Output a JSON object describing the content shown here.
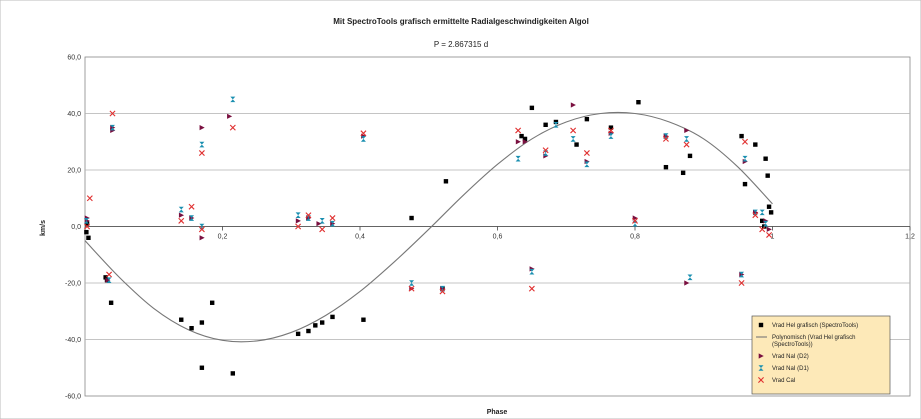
{
  "chart_data": {
    "type": "scatter",
    "title": "Mit SpectroTools grafisch ermittelte Radialgeschwindigkeiten Algol",
    "subtitle": "P = 2.867315 d",
    "xlabel": "Phase",
    "ylabel": "km/s",
    "xlim": [
      0,
      1.2
    ],
    "ylim": [
      -60,
      60
    ],
    "x_ticks": [
      "0",
      "0,2",
      "0,4",
      "0,6",
      "0,8",
      "1",
      "1,2"
    ],
    "y_ticks": [
      "60,0",
      "40,0",
      "20,0",
      "0,0",
      "-20,0",
      "-40,0",
      "-60,0"
    ],
    "grid": "horizontal",
    "legend_position": "bottom-right",
    "series": [
      {
        "name": "Vrad Hel grafisch (SpectroTools)",
        "marker": "square",
        "color": "#000000",
        "points": [
          [
            0.002,
            -2
          ],
          [
            0.005,
            -4
          ],
          [
            0.003,
            1
          ],
          [
            0.03,
            -18
          ],
          [
            0.032,
            -19
          ],
          [
            0.038,
            -27
          ],
          [
            0.14,
            -33
          ],
          [
            0.155,
            -36
          ],
          [
            0.17,
            -50
          ],
          [
            0.17,
            -34
          ],
          [
            0.185,
            -27
          ],
          [
            0.215,
            -52
          ],
          [
            0.31,
            -38
          ],
          [
            0.325,
            -37
          ],
          [
            0.335,
            -35
          ],
          [
            0.345,
            -34
          ],
          [
            0.36,
            -32
          ],
          [
            0.405,
            -33
          ],
          [
            0.475,
            3
          ],
          [
            0.52,
            -22
          ],
          [
            0.525,
            16
          ],
          [
            0.635,
            32
          ],
          [
            0.64,
            31
          ],
          [
            0.65,
            42
          ],
          [
            0.67,
            36
          ],
          [
            0.685,
            37
          ],
          [
            0.715,
            29
          ],
          [
            0.73,
            38
          ],
          [
            0.765,
            35
          ],
          [
            0.805,
            44
          ],
          [
            0.845,
            21
          ],
          [
            0.87,
            19
          ],
          [
            0.88,
            25
          ],
          [
            0.955,
            32
          ],
          [
            0.96,
            15
          ],
          [
            0.975,
            29
          ],
          [
            0.99,
            24
          ],
          [
            0.993,
            18
          ],
          [
            0.995,
            7
          ],
          [
            0.998,
            5
          ],
          [
            0.985,
            2
          ],
          [
            0.988,
            0
          ]
        ]
      },
      {
        "name": "Polynomisch (Vrad Hel grafisch (SpectroTools))",
        "line": true,
        "color": "#777777",
        "points": [
          [
            0.0,
            -5
          ],
          [
            0.05,
            -18
          ],
          [
            0.1,
            -29
          ],
          [
            0.15,
            -36.5
          ],
          [
            0.2,
            -40.3
          ],
          [
            0.25,
            -40.5
          ],
          [
            0.3,
            -37.5
          ],
          [
            0.35,
            -31.5
          ],
          [
            0.4,
            -23
          ],
          [
            0.45,
            -12.5
          ],
          [
            0.5,
            -1
          ],
          [
            0.55,
            11
          ],
          [
            0.6,
            22
          ],
          [
            0.65,
            31
          ],
          [
            0.7,
            37
          ],
          [
            0.75,
            40
          ],
          [
            0.8,
            40
          ],
          [
            0.85,
            37
          ],
          [
            0.9,
            31
          ],
          [
            0.95,
            21
          ],
          [
            1.0,
            8
          ]
        ]
      },
      {
        "name": "Vrad NaI (D2)",
        "marker": "triangle-right",
        "color": "#7a1040",
        "points": [
          [
            0.003,
            3
          ],
          [
            0.003,
            2
          ],
          [
            0.033,
            -19
          ],
          [
            0.04,
            35
          ],
          [
            0.04,
            34
          ],
          [
            0.14,
            4
          ],
          [
            0.155,
            3
          ],
          [
            0.17,
            35
          ],
          [
            0.17,
            -4
          ],
          [
            0.21,
            39
          ],
          [
            0.31,
            2
          ],
          [
            0.325,
            3
          ],
          [
            0.34,
            1
          ],
          [
            0.36,
            1
          ],
          [
            0.405,
            32
          ],
          [
            0.475,
            -22
          ],
          [
            0.52,
            -22
          ],
          [
            0.63,
            30
          ],
          [
            0.64,
            30
          ],
          [
            0.65,
            -15
          ],
          [
            0.67,
            25
          ],
          [
            0.71,
            43
          ],
          [
            0.73,
            23
          ],
          [
            0.765,
            33
          ],
          [
            0.8,
            3
          ],
          [
            0.845,
            32
          ],
          [
            0.875,
            34
          ],
          [
            0.875,
            -20
          ],
          [
            0.955,
            -17
          ],
          [
            0.96,
            23
          ],
          [
            0.975,
            5
          ],
          [
            0.99,
            2
          ],
          [
            0.995,
            -1
          ]
        ]
      },
      {
        "name": "Vrad NaI (D1)",
        "marker": "hourglass",
        "color": "#1a8fb0",
        "points": [
          [
            0.002,
            2
          ],
          [
            0.035,
            -19
          ],
          [
            0.04,
            35
          ],
          [
            0.14,
            6
          ],
          [
            0.155,
            3
          ],
          [
            0.17,
            29
          ],
          [
            0.17,
            0
          ],
          [
            0.215,
            45
          ],
          [
            0.31,
            4
          ],
          [
            0.325,
            3
          ],
          [
            0.345,
            2
          ],
          [
            0.36,
            1
          ],
          [
            0.405,
            31
          ],
          [
            0.475,
            -20
          ],
          [
            0.52,
            -22
          ],
          [
            0.63,
            24
          ],
          [
            0.65,
            -16
          ],
          [
            0.67,
            26
          ],
          [
            0.685,
            36
          ],
          [
            0.71,
            31
          ],
          [
            0.73,
            22
          ],
          [
            0.765,
            32
          ],
          [
            0.8,
            1
          ],
          [
            0.845,
            32
          ],
          [
            0.875,
            31
          ],
          [
            0.88,
            -18
          ],
          [
            0.955,
            -17
          ],
          [
            0.96,
            24
          ],
          [
            0.975,
            5
          ],
          [
            0.985,
            5
          ],
          [
            0.99,
            1
          ]
        ]
      },
      {
        "name": "Vrad CaI",
        "marker": "x",
        "color": "#e03030",
        "points": [
          [
            0.007,
            10
          ],
          [
            0.003,
            0
          ],
          [
            0.035,
            -17
          ],
          [
            0.04,
            40
          ],
          [
            0.14,
            2
          ],
          [
            0.155,
            7
          ],
          [
            0.17,
            26
          ],
          [
            0.17,
            -1
          ],
          [
            0.215,
            35
          ],
          [
            0.31,
            0
          ],
          [
            0.325,
            4
          ],
          [
            0.345,
            -1
          ],
          [
            0.36,
            3
          ],
          [
            0.405,
            33
          ],
          [
            0.475,
            -22
          ],
          [
            0.52,
            -23
          ],
          [
            0.63,
            34
          ],
          [
            0.65,
            -22
          ],
          [
            0.67,
            27
          ],
          [
            0.71,
            34
          ],
          [
            0.73,
            26
          ],
          [
            0.765,
            34
          ],
          [
            0.8,
            2
          ],
          [
            0.845,
            31
          ],
          [
            0.875,
            29
          ],
          [
            0.955,
            -20
          ],
          [
            0.96,
            30
          ],
          [
            0.975,
            4
          ],
          [
            0.985,
            -1
          ],
          [
            0.995,
            -3
          ]
        ]
      }
    ]
  }
}
